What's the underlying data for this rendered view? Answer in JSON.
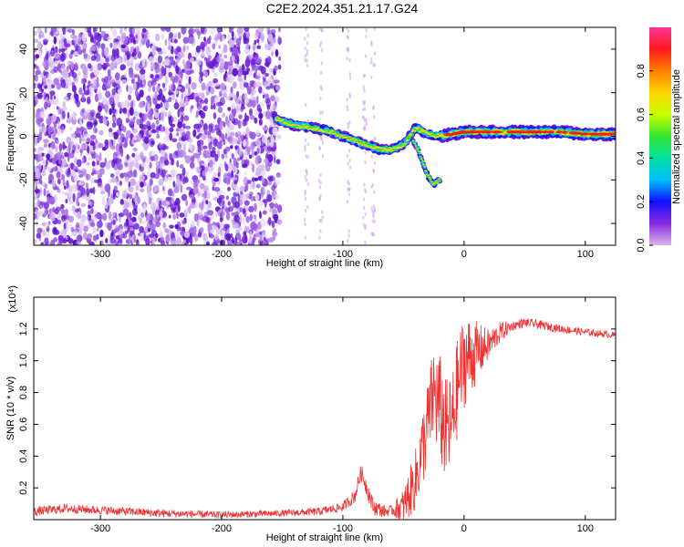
{
  "title": "C2E2.2024.351.21.17.G24",
  "colors": {
    "spectrogram_noise": "#7b2be0",
    "snr_line": "#ee3333",
    "colorbar": [
      "#d9b3e6",
      "#8a2be2",
      "#1010ff",
      "#00bfff",
      "#00e0a0",
      "#33e633",
      "#c8ff00",
      "#ffd500",
      "#ff7f00",
      "#ff1a1a",
      "#ff3399"
    ]
  },
  "chart_data": [
    {
      "type": "heatmap",
      "xlabel": "Height of straight line (km)",
      "ylabel": "Frequency (Hz)",
      "xlim": [
        -355,
        125
      ],
      "ylim": [
        -50,
        50
      ],
      "xticks": [
        -300,
        -200,
        -100,
        0,
        100
      ],
      "yticks": [
        -40,
        -20,
        0,
        20,
        40
      ],
      "grid": false,
      "colorbar": {
        "label": "Normalized spectral amplitude",
        "range": [
          0,
          1
        ],
        "ticks": [
          "0.0",
          "0.2",
          "0.4",
          "0.6",
          "0.8"
        ],
        "tick_values": [
          0.0,
          0.2,
          0.4,
          0.6,
          0.8
        ],
        "placement": "right"
      },
      "noise_region_x": [
        -355,
        -152
      ],
      "signal_trace": {
        "x": [
          -155,
          -140,
          -125,
          -110,
          -100,
          -90,
          -80,
          -70,
          -60,
          -50,
          -40,
          -30,
          -20,
          -10,
          0,
          20,
          50,
          80,
          100,
          125
        ],
        "y": [
          8,
          5,
          4,
          2,
          0,
          -2,
          -4,
          -6,
          -6,
          -4,
          4,
          1,
          0,
          1,
          2,
          2,
          2,
          2,
          1,
          1
        ]
      },
      "branch_trace": {
        "x": [
          -42,
          -38,
          -34,
          -30,
          -25,
          -20
        ],
        "y": [
          -2,
          -6,
          -12,
          -18,
          -22,
          -20
        ]
      }
    },
    {
      "type": "line",
      "xlabel": "Height of straight line (km)",
      "ylabel": "SNR (10 * v/v)",
      "y_multiplier_label": "(x10⁴)",
      "xlim": [
        -355,
        125
      ],
      "ylim": [
        0,
        1.4
      ],
      "xticks": [
        -300,
        -200,
        -100,
        0,
        100
      ],
      "yticks": [
        0.2,
        0.4,
        0.6,
        0.8,
        1.0,
        1.2
      ],
      "grid": false,
      "series_envelope": {
        "x": [
          -355,
          -330,
          -300,
          -250,
          -200,
          -150,
          -120,
          -100,
          -90,
          -85,
          -80,
          -75,
          -65,
          -50,
          -40,
          -30,
          -25,
          -20,
          -15,
          -10,
          -5,
          0,
          10,
          20,
          30,
          40,
          50,
          60,
          80,
          100,
          125
        ],
        "y": [
          0.05,
          0.07,
          0.06,
          0.04,
          0.03,
          0.04,
          0.05,
          0.08,
          0.15,
          0.3,
          0.2,
          0.08,
          0.05,
          0.08,
          0.25,
          0.6,
          0.8,
          0.7,
          0.55,
          0.6,
          0.85,
          1.0,
          1.05,
          1.1,
          1.18,
          1.22,
          1.24,
          1.23,
          1.2,
          1.18,
          1.16
        ]
      },
      "noise_amplitude": {
        "x": [
          -355,
          -150,
          -100,
          -80,
          -60,
          -40,
          -20,
          0,
          20,
          40,
          125
        ],
        "y": [
          0.03,
          0.02,
          0.03,
          0.06,
          0.03,
          0.2,
          0.35,
          0.3,
          0.1,
          0.03,
          0.02
        ]
      }
    }
  ]
}
